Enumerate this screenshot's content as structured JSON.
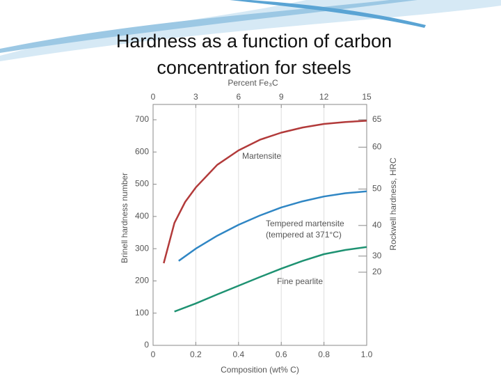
{
  "title": "Hardness as a function of carbon concentration for steels",
  "chart_data": {
    "type": "line",
    "xlabel": "Composition (wt% C)",
    "ylabel": "Brinell hardness number",
    "x2label": "Percent Fe₃C",
    "y2label": "Rockwell hardness, HRC",
    "xlim": [
      0,
      1.0
    ],
    "xticks": [
      0,
      0.2,
      0.4,
      0.6,
      0.8,
      {
        "value": 1.0,
        "label": "1.0"
      }
    ],
    "ylim": [
      0,
      700
    ],
    "yticks": [
      0,
      100,
      200,
      300,
      400,
      500,
      600,
      700
    ],
    "x2lim": [
      0,
      15
    ],
    "x2ticks": [
      0,
      3,
      6,
      9,
      12,
      15
    ],
    "rockwell_scale": {
      "ticks": [
        65,
        60,
        50,
        40,
        30,
        20
      ],
      "brinell_equivalent": [
        700,
        615,
        485,
        372,
        277,
        227
      ]
    },
    "grid": true,
    "series": [
      {
        "name": "Martensite",
        "color": "#b23a3a",
        "x": [
          0.05,
          0.1,
          0.15,
          0.2,
          0.3,
          0.4,
          0.5,
          0.6,
          0.7,
          0.8,
          0.9,
          1.0
        ],
        "values": [
          255,
          380,
          445,
          490,
          560,
          605,
          638,
          660,
          676,
          687,
          693,
          697
        ]
      },
      {
        "name": "Tempered martensite",
        "color": "#2f86c4",
        "x": [
          0.12,
          0.2,
          0.3,
          0.4,
          0.5,
          0.6,
          0.7,
          0.8,
          0.9,
          1.0
        ],
        "values": [
          262,
          300,
          340,
          374,
          403,
          428,
          447,
          462,
          472,
          478
        ]
      },
      {
        "name": "Fine pearlite",
        "color": "#1e9272",
        "x": [
          0.1,
          0.2,
          0.3,
          0.4,
          0.5,
          0.6,
          0.7,
          0.8,
          0.9,
          1.0
        ],
        "values": [
          105,
          130,
          158,
          185,
          212,
          238,
          262,
          283,
          296,
          305
        ]
      }
    ],
    "annotations": [
      "Martensite",
      "Tempered martensite",
      "(tempered at 371°C)",
      "Fine pearlite"
    ]
  }
}
